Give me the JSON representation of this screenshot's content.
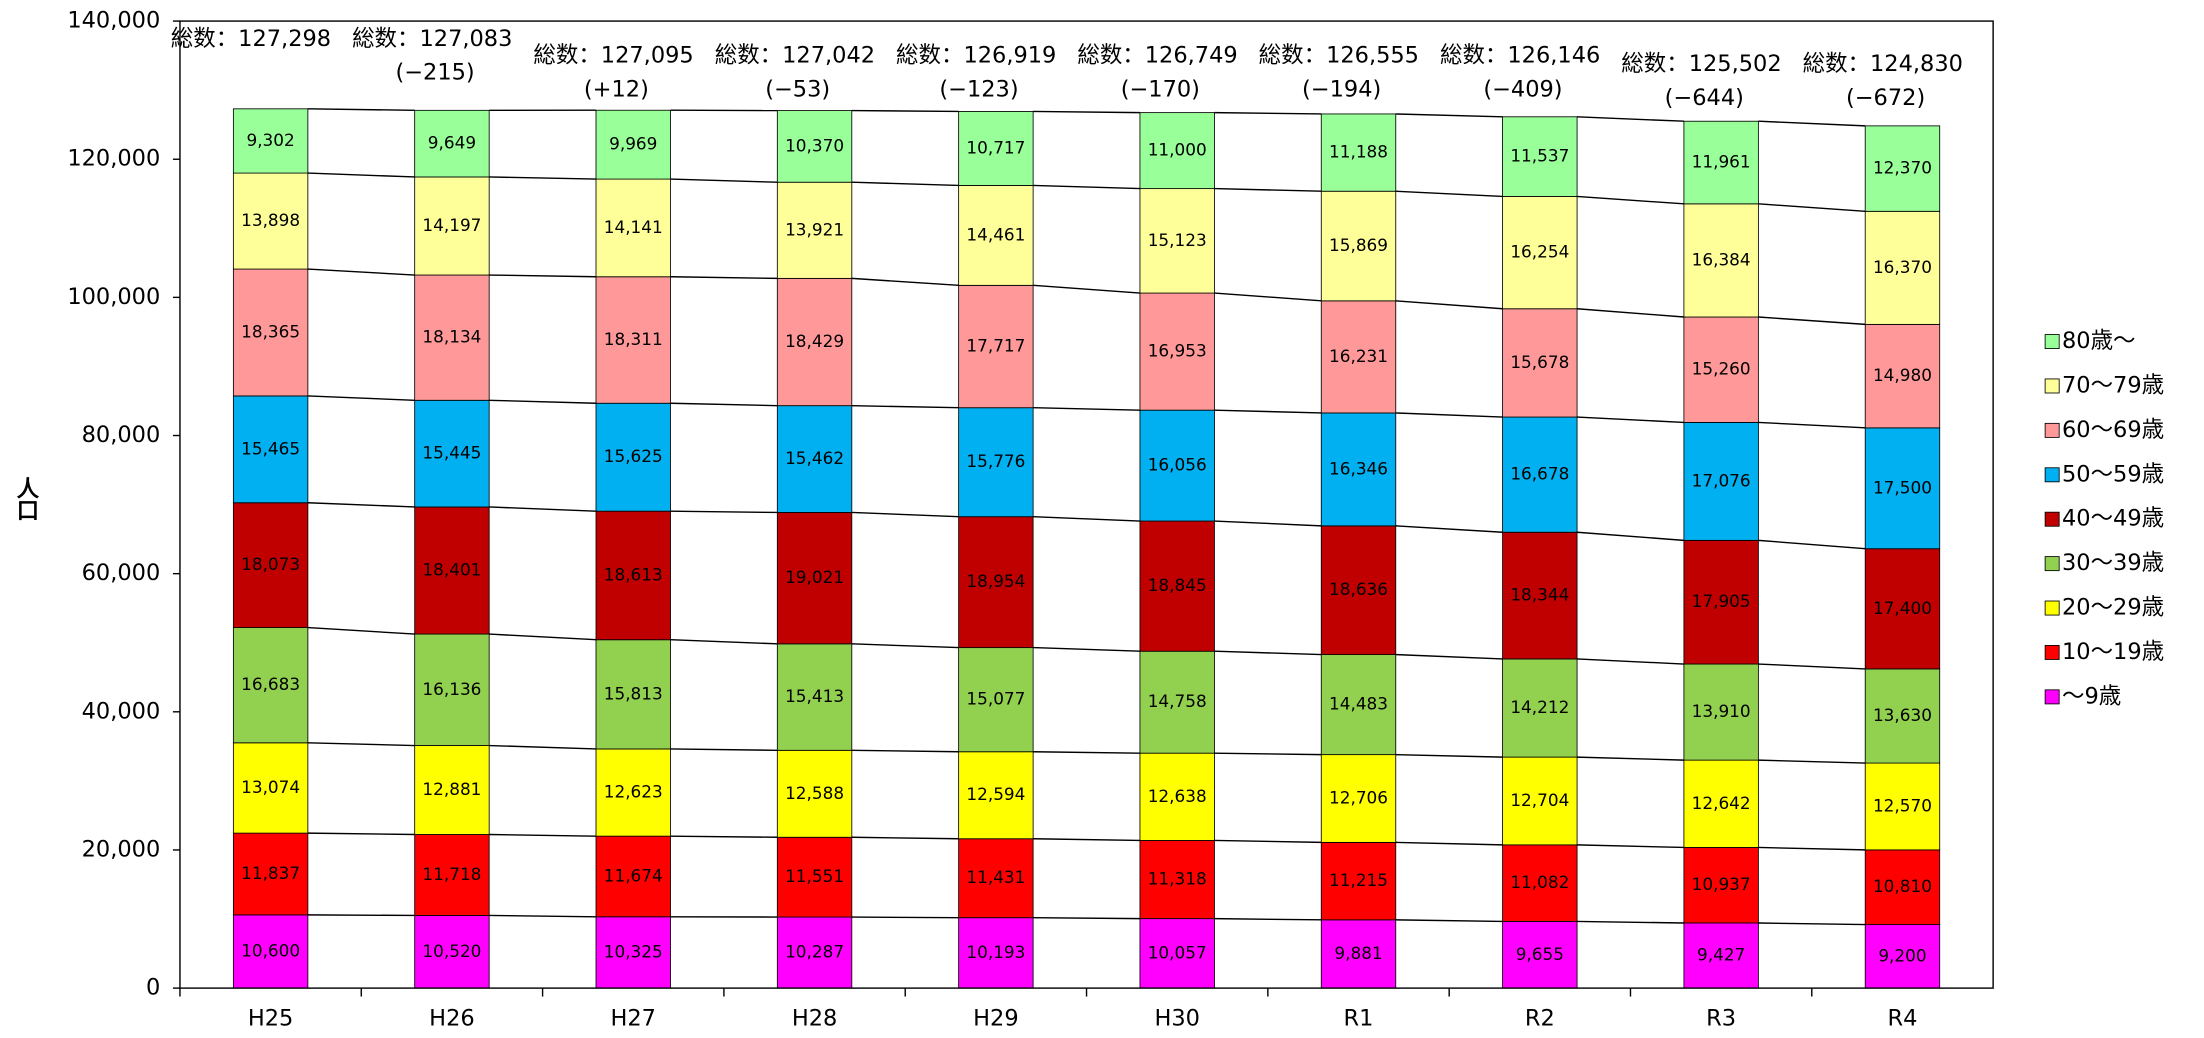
{
  "chart_data": {
    "type": "stacked_bar",
    "ylabel": "人口",
    "categories": [
      "H25",
      "H26",
      "H27",
      "H28",
      "H29",
      "H30",
      "R1",
      "R2",
      "R3",
      "R4"
    ],
    "ylim": [
      0,
      140000
    ],
    "yticks": [
      0,
      {
        "value": 20000,
        "label": "20,000"
      },
      {
        "value": 40000,
        "label": "40,000"
      },
      {
        "value": 60000,
        "label": "60,000"
      },
      {
        "value": 80000,
        "label": "80,000"
      },
      {
        "value": 100000,
        "label": "100,000"
      },
      {
        "value": 120000,
        "label": "120,000"
      },
      {
        "value": 140000,
        "label": "140,000"
      }
    ],
    "legend": "right",
    "series": [
      {
        "name": "〜9歳",
        "color": "#ff00ff",
        "values": [
          10600,
          10520,
          10325,
          10287,
          10193,
          10057,
          9881,
          9655,
          9427,
          9200
        ],
        "value_labels": [
          "10,600",
          "10,520",
          "10,325",
          "10,287",
          "10,193",
          "10,057",
          "9,881",
          "9,655",
          "9,427",
          "9,200"
        ]
      },
      {
        "name": "10〜19歳",
        "color": "#ff0000",
        "values": [
          11837,
          11718,
          11674,
          11551,
          11431,
          11318,
          11215,
          11082,
          10937,
          10810
        ],
        "value_labels": [
          "11,837",
          "11,718",
          "11,674",
          "11,551",
          "11,431",
          "11,318",
          "11,215",
          "11,082",
          "10,937",
          "10,810"
        ]
      },
      {
        "name": "20〜29歳",
        "color": "#ffff00",
        "values": [
          13074,
          12881,
          12623,
          12588,
          12594,
          12638,
          12706,
          12704,
          12642,
          12570
        ],
        "value_labels": [
          "13,074",
          "12,881",
          "12,623",
          "12,588",
          "12,594",
          "12,638",
          "12,706",
          "12,704",
          "12,642",
          "12,570"
        ]
      },
      {
        "name": "30〜39歳",
        "color": "#92d050",
        "values": [
          16683,
          16136,
          15813,
          15413,
          15077,
          14758,
          14483,
          14212,
          13910,
          13630
        ],
        "value_labels": [
          "16,683",
          "16,136",
          "15,813",
          "15,413",
          "15,077",
          "14,758",
          "14,483",
          "14,212",
          "13,910",
          "13,630"
        ]
      },
      {
        "name": "40〜49歳",
        "color": "#c00000",
        "values": [
          18073,
          18401,
          18613,
          19021,
          18954,
          18845,
          18636,
          18344,
          17905,
          17400
        ],
        "value_labels": [
          "18,073",
          "18,401",
          "18,613",
          "19,021",
          "18,954",
          "18,845",
          "18,636",
          "18,344",
          "17,905",
          "17,400"
        ]
      },
      {
        "name": "50〜59歳",
        "color": "#00b0f0",
        "values": [
          15465,
          15445,
          15625,
          15462,
          15776,
          16056,
          16346,
          16678,
          17076,
          17500
        ],
        "value_labels": [
          "15,465",
          "15,445",
          "15,625",
          "15,462",
          "15,776",
          "16,056",
          "16,346",
          "16,678",
          "17,076",
          "17,500"
        ]
      },
      {
        "name": "60〜69歳",
        "color": "#ff9999",
        "values": [
          18365,
          18134,
          18311,
          18429,
          17717,
          16953,
          16231,
          15678,
          15260,
          14980
        ],
        "value_labels": [
          "18,365",
          "18,134",
          "18,311",
          "18,429",
          "17,717",
          "16,953",
          "16,231",
          "15,678",
          "15,260",
          "14,980"
        ]
      },
      {
        "name": "70〜79歳",
        "color": "#ffff99",
        "values": [
          13898,
          14197,
          14141,
          13921,
          14461,
          15123,
          15869,
          16254,
          16384,
          16370
        ],
        "value_labels": [
          "13,898",
          "14,197",
          "14,141",
          "13,921",
          "14,461",
          "15,123",
          "15,869",
          "16,254",
          "16,384",
          "16,370"
        ]
      },
      {
        "name": "80歳〜",
        "color": "#99ff99",
        "values": [
          9302,
          9649,
          9969,
          10370,
          10717,
          11000,
          11188,
          11537,
          11961,
          12370
        ],
        "value_labels": [
          "9,302",
          "9,649",
          "9,969",
          "10,370",
          "10,717",
          "11,000",
          "11,188",
          "11,537",
          "11,961",
          "12,370"
        ]
      }
    ],
    "totals": {
      "values": [
        127298,
        127083,
        127095,
        127042,
        126919,
        126749,
        126555,
        126146,
        125502,
        124830
      ],
      "value_labels": [
        "総数：127,298",
        "総数：127,083",
        "総数：127,095",
        "総数：127,042",
        "総数：126,919",
        "総数：126,749",
        "総数：126,555",
        "総数：126,146",
        "総数：125,502",
        "総数：124,830"
      ]
    },
    "changes": {
      "values": [
        null,
        -215,
        12,
        -53,
        -123,
        -170,
        -194,
        -409,
        -644,
        -672
      ],
      "value_labels": [
        null,
        "(−215)",
        "(+12)",
        "(−53)",
        "(−123)",
        "(−170)",
        "(−194)",
        "(−409)",
        "(−644)",
        "(−672)"
      ]
    }
  }
}
